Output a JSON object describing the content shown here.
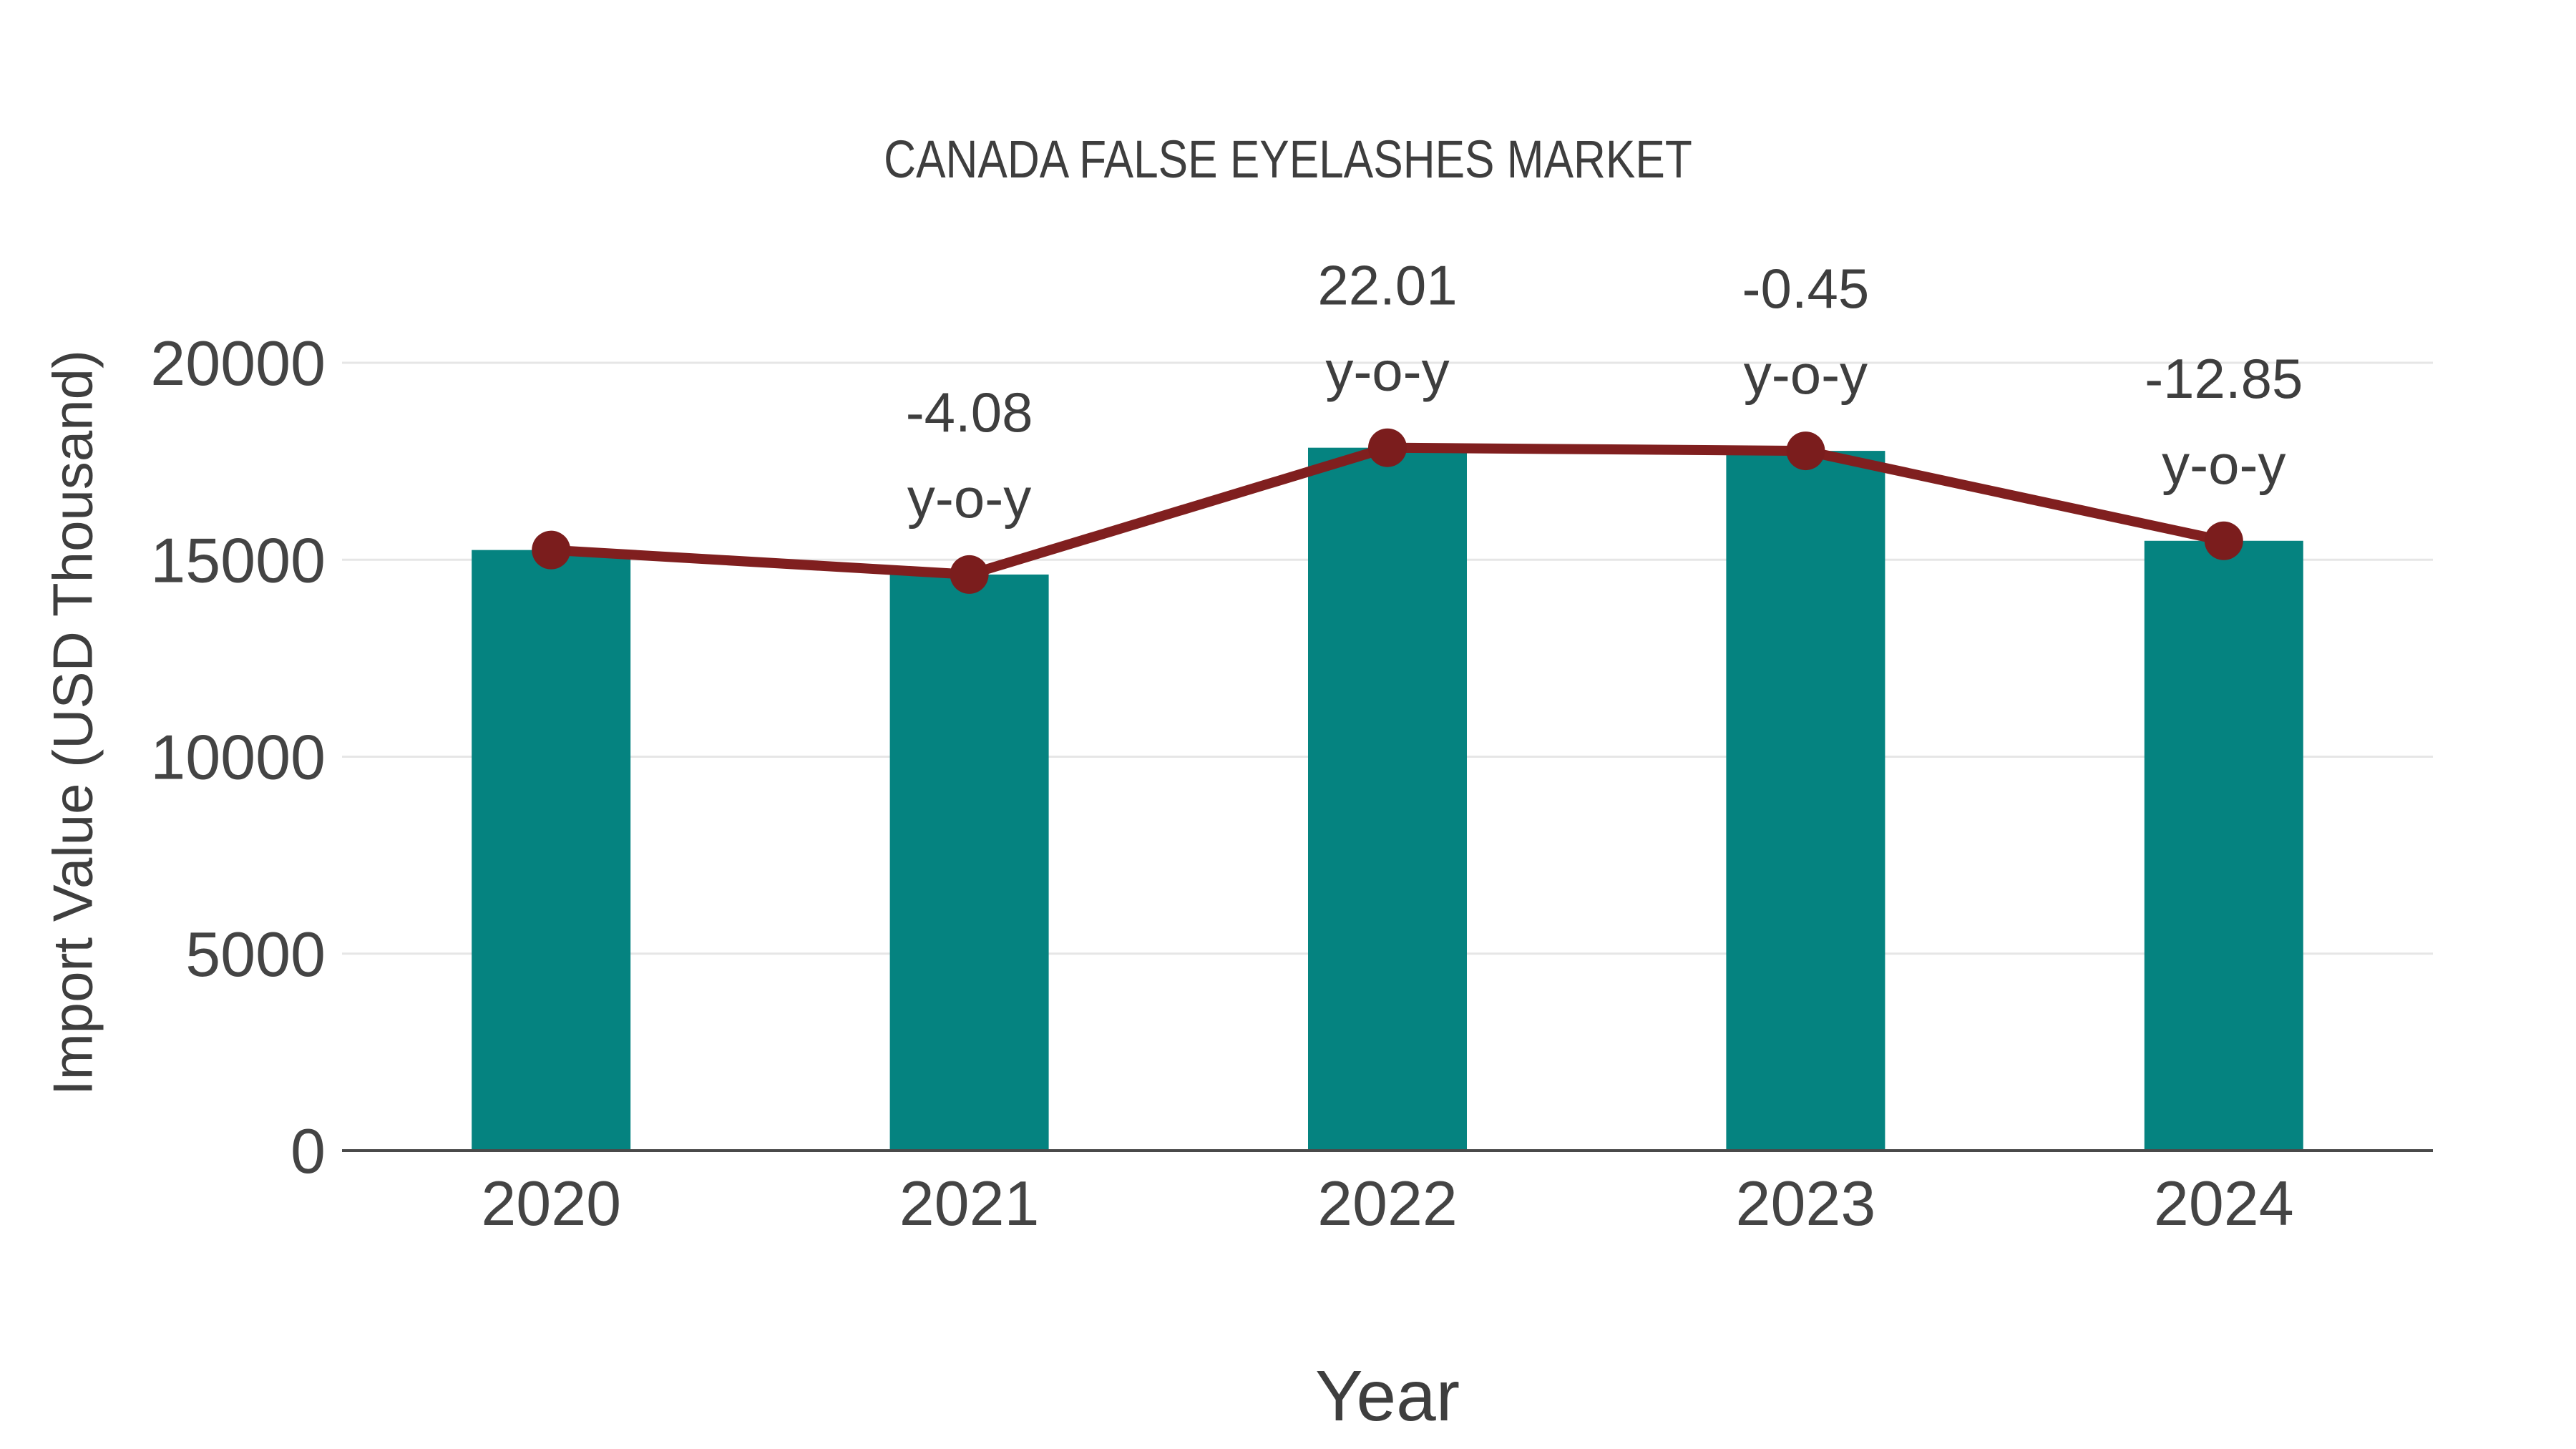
{
  "title": "CANADA FALSE EYELASHES MARKET",
  "y_axis": {
    "title": "Import Value (USD Thousand)",
    "tick_labels": [
      "0",
      "5000",
      "10000",
      "15000",
      "20000"
    ]
  },
  "x_axis": {
    "title": "Year",
    "tick_labels": [
      "2020",
      "2021",
      "2022",
      "2023",
      "2024"
    ]
  },
  "chart_data": {
    "type": "bar",
    "title": "CANADA FALSE EYELASHES MARKET",
    "categories": [
      "2020",
      "2021",
      "2022",
      "2023",
      "2024"
    ],
    "series": [
      {
        "name": "Import Value (bars)",
        "type": "bar",
        "values": [
          15247,
          14625,
          17844,
          17764,
          15481
        ]
      },
      {
        "name": "Import Value (line)",
        "type": "line",
        "values": [
          15247,
          14625,
          17844,
          17764,
          15481
        ]
      }
    ],
    "annotations": [
      {
        "category": "2021",
        "value_text": "-4.08",
        "unit_text": "y-o-y"
      },
      {
        "category": "2022",
        "value_text": "22.01",
        "unit_text": "y-o-y"
      },
      {
        "category": "2023",
        "value_text": "-0.45",
        "unit_text": "y-o-y"
      },
      {
        "category": "2024",
        "value_text": "-12.85",
        "unit_text": "y-o-y"
      }
    ],
    "xlabel": "Year",
    "ylabel": "Import Value (USD Thousand)",
    "yticks": [
      0,
      5000,
      10000,
      15000,
      20000
    ],
    "ylim": [
      0,
      21600
    ],
    "grid": true,
    "legend": false,
    "colors": {
      "bar": "#058380",
      "line": "#801f1f",
      "marker": "#7b1d1d",
      "grid": "#e6e6e6",
      "axis_line": "#4a4a4a",
      "tick_text": "#444444",
      "annotation_text": "#3e3e3e",
      "background": "#ffffff"
    }
  }
}
